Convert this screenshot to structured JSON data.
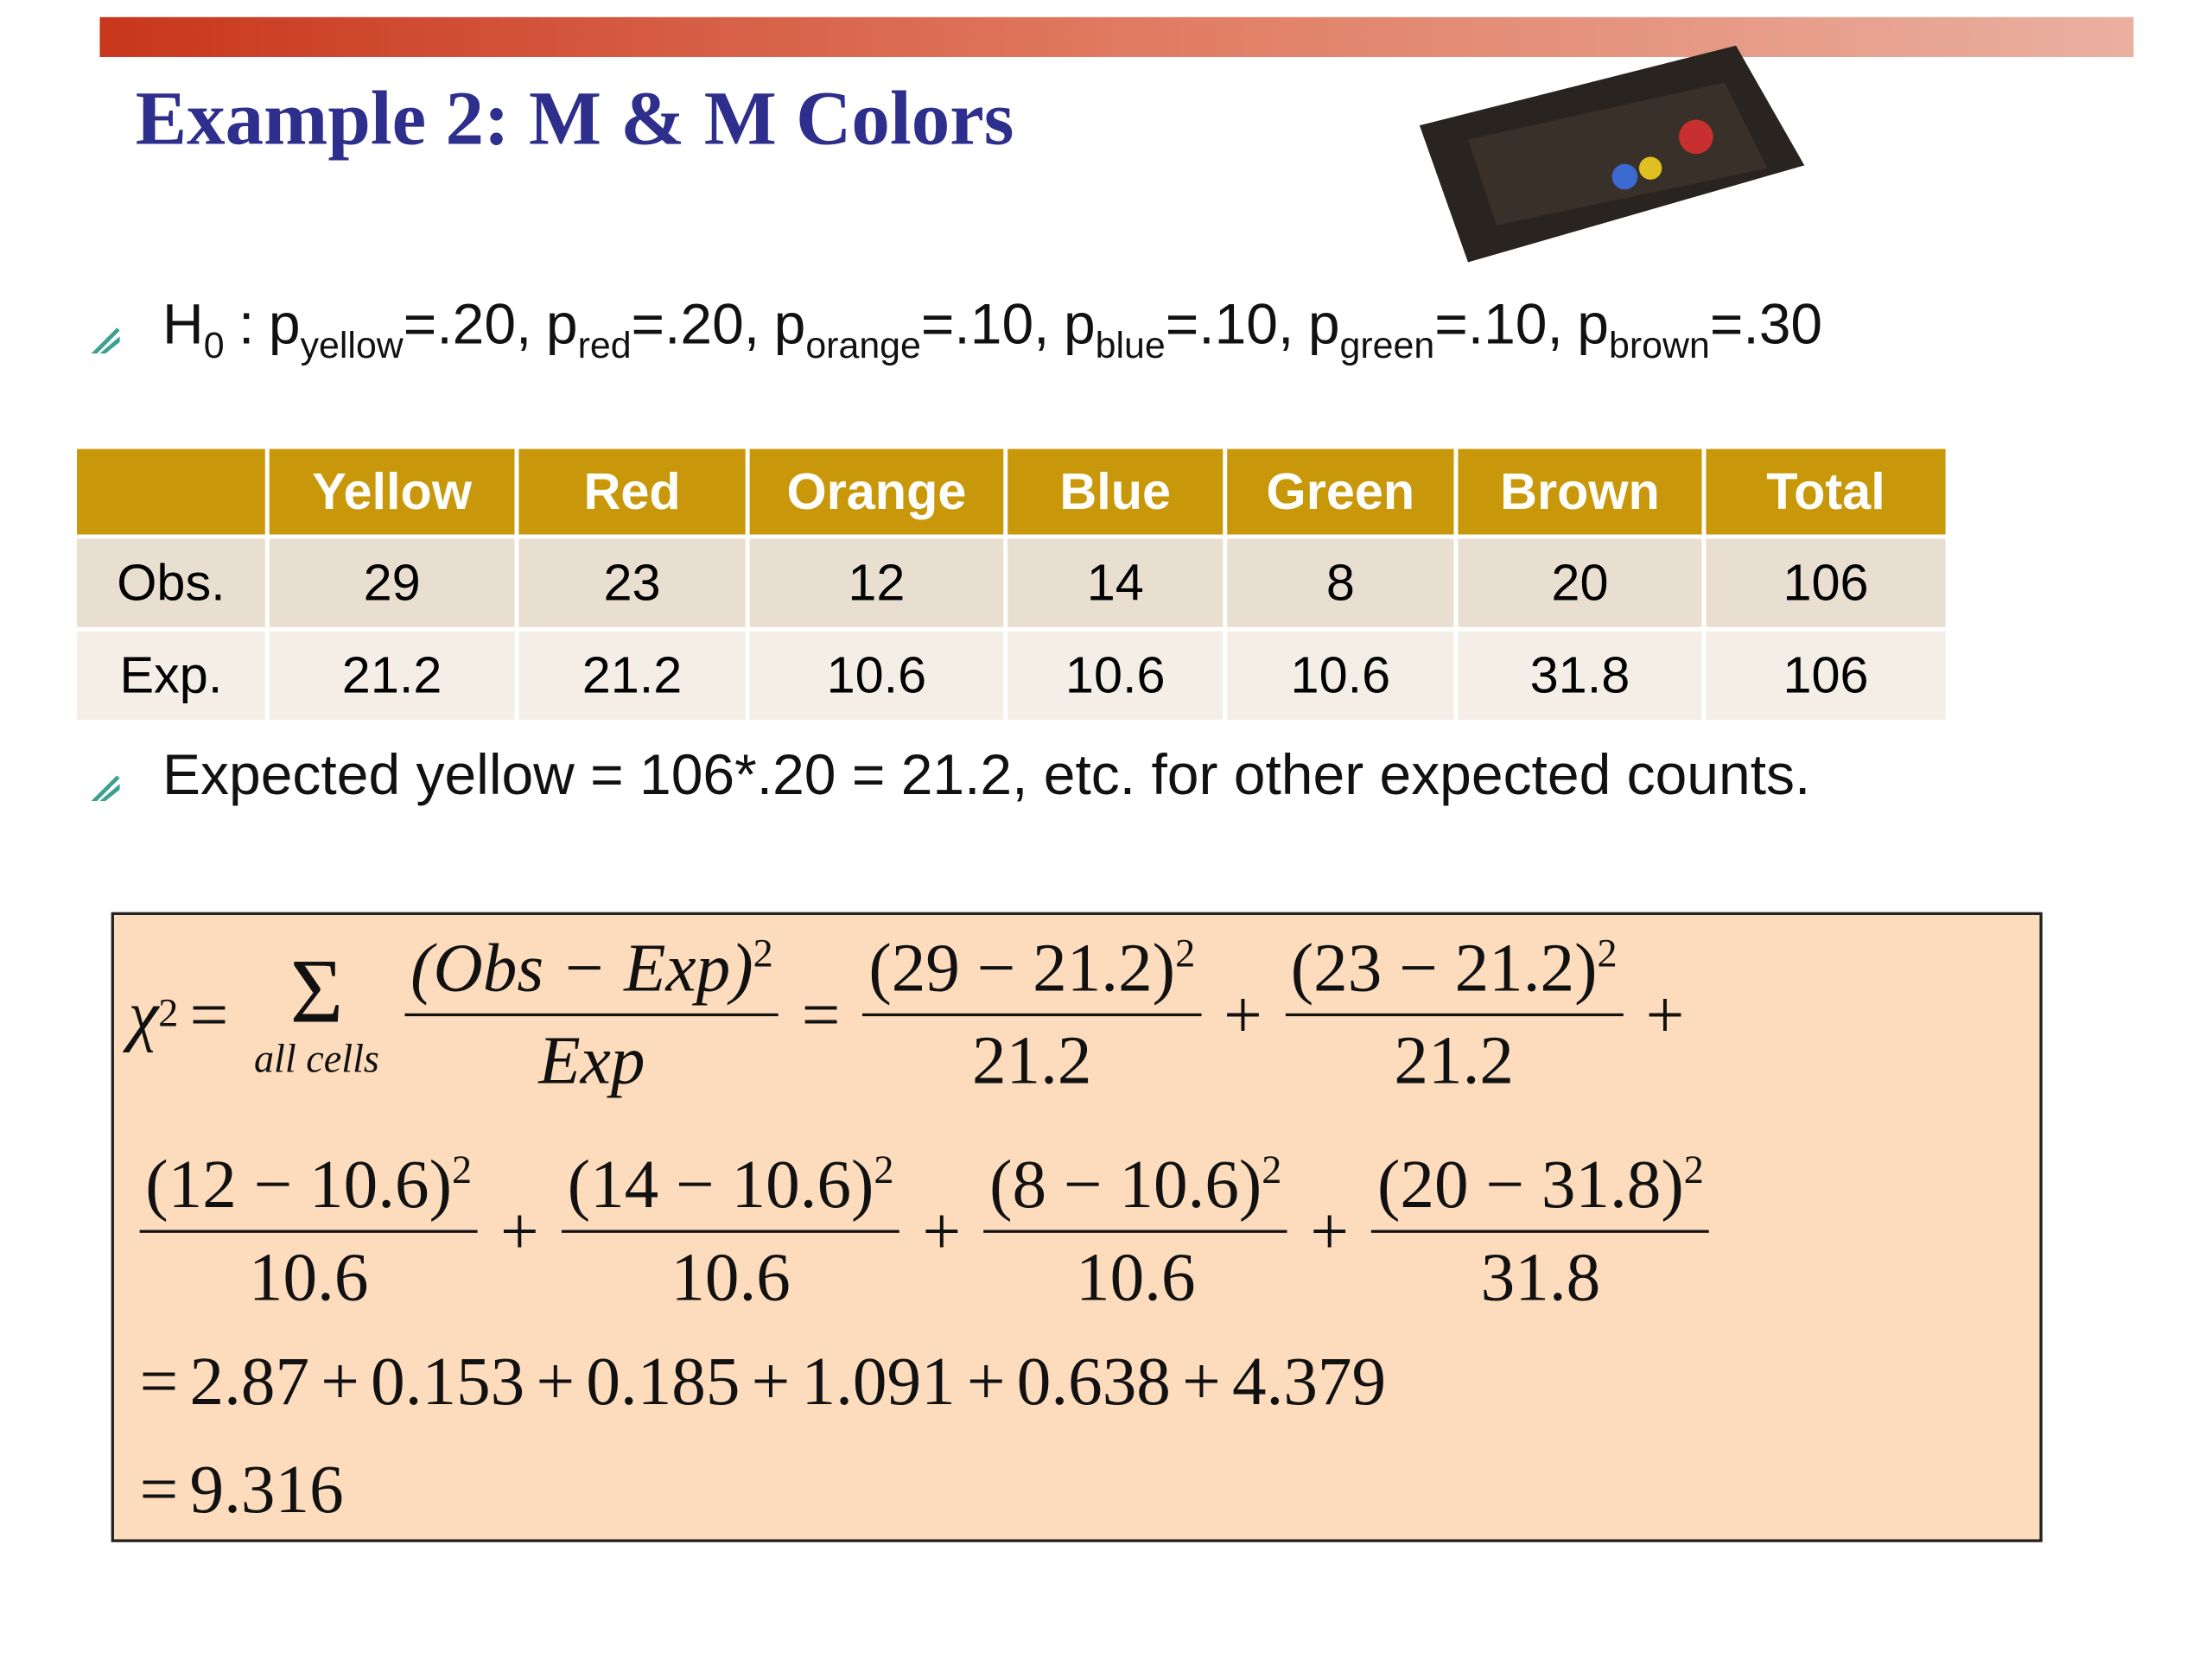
{
  "header": {
    "title": "Example 2: M & M Colors"
  },
  "hypothesis": {
    "lhs": "H",
    "lhs_sub": "0",
    "colon": ":",
    "items": [
      {
        "p": "p",
        "sub": "yellow",
        "rest": "=.20,"
      },
      {
        "p": "p",
        "sub": "red",
        "rest": "=.20,"
      },
      {
        "p": "p",
        "sub": "orange",
        "rest": "=.10,"
      },
      {
        "p": "p",
        "sub": "blue",
        "rest": "=.10,"
      },
      {
        "p": "p",
        "sub": "green",
        "rest": "=.10,"
      },
      {
        "p": "p",
        "sub": "brown",
        "rest": "=.30"
      }
    ]
  },
  "table": {
    "columns": [
      "Yellow",
      "Red",
      "Orange",
      "Blue",
      "Green",
      "Brown",
      "Total"
    ],
    "rows": [
      {
        "label": "Obs.",
        "cells": [
          29,
          23,
          12,
          14,
          8,
          20,
          106
        ]
      },
      {
        "label": "Exp.",
        "cells": [
          21.2,
          21.2,
          10.6,
          10.6,
          10.6,
          31.8,
          106
        ]
      }
    ]
  },
  "note": "Expected yellow = 106*.20 = 21.2, etc. for other expected counts.",
  "formula": {
    "chi": "χ",
    "chi_sup": "2",
    "eq": "=",
    "plus": "+",
    "sigma": "Σ",
    "sigma_sub": "all cells",
    "general": {
      "num": "(Obs − Exp)",
      "sup": "2",
      "den": "Exp"
    },
    "terms": [
      {
        "num": "(29 − 21.2)",
        "sup": "2",
        "den": "21.2"
      },
      {
        "num": "(23 − 21.2)",
        "sup": "2",
        "den": "21.2"
      },
      {
        "num": "(12 − 10.6)",
        "sup": "2",
        "den": "10.6"
      },
      {
        "num": "(14 − 10.6)",
        "sup": "2",
        "den": "10.6"
      },
      {
        "num": "(8 − 10.6)",
        "sup": "2",
        "den": "10.6"
      },
      {
        "num": "(20 − 31.8)",
        "sup": "2",
        "den": "31.8"
      }
    ],
    "contributions": [
      2.87,
      0.153,
      0.185,
      1.091,
      0.638,
      4.379
    ],
    "total": 9.316
  }
}
